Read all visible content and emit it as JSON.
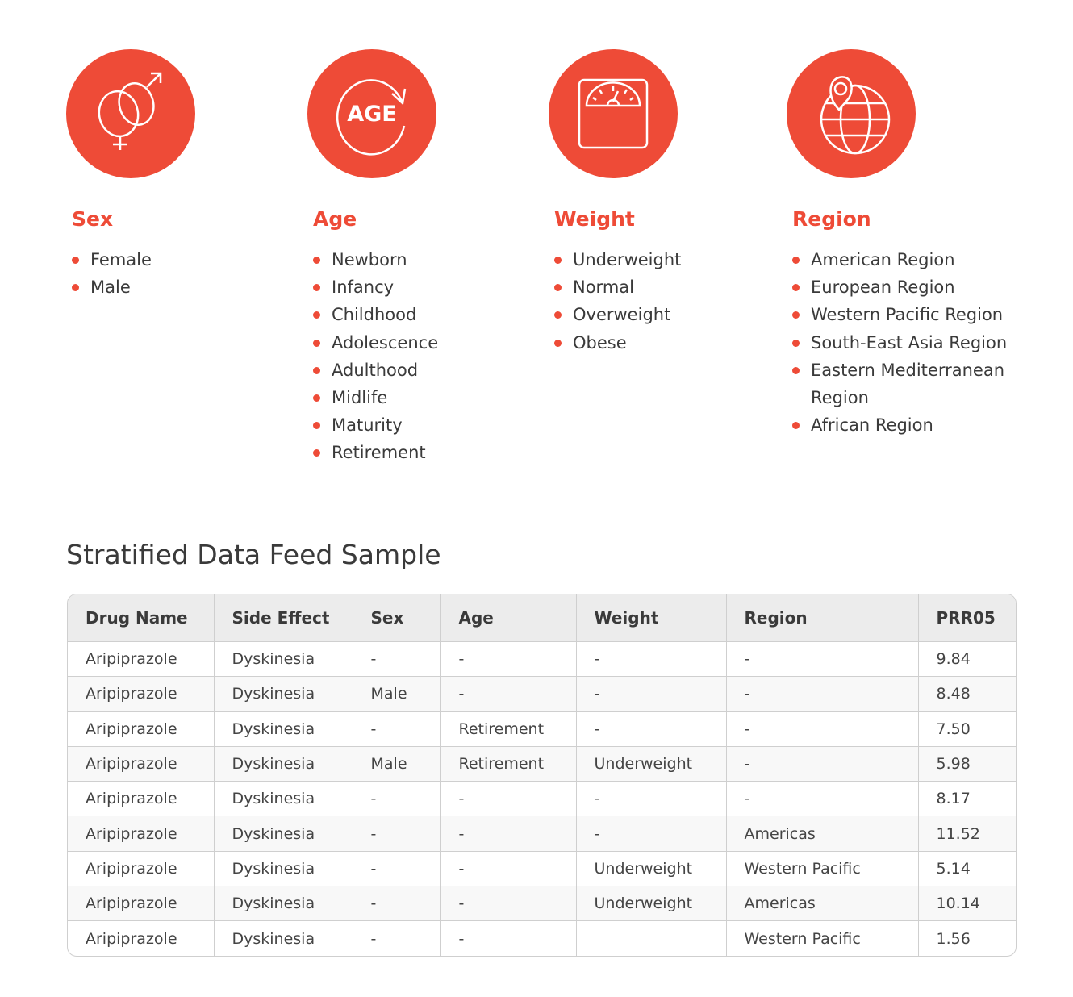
{
  "accent": "#ee4b37",
  "categories": [
    {
      "title": "Sex",
      "icon": "gender-symbols-icon",
      "items": [
        "Female",
        "Male"
      ]
    },
    {
      "title": "Age",
      "icon": "age-cycle-icon",
      "icon_text": "AGE",
      "items": [
        "Newborn",
        "Infancy",
        "Childhood",
        "Adolescence",
        "Adulthood",
        "Midlife",
        "Maturity",
        "Retirement"
      ]
    },
    {
      "title": "Weight",
      "icon": "weighing-scale-icon",
      "items": [
        "Underweight",
        "Normal",
        "Overweight",
        "Obese"
      ]
    },
    {
      "title": "Region",
      "icon": "globe-location-icon",
      "items": [
        "American Region",
        "European Region",
        "Western Pacific Region",
        "South-East Asia Region",
        "Eastern Mediterranean Region",
        "African Region"
      ]
    }
  ],
  "table": {
    "title": "Stratified Data Feed Sample",
    "columns": [
      "Drug  Name",
      "Side Effect",
      "Sex",
      "Age",
      "Weight",
      "Region",
      "PRR05"
    ],
    "rows": [
      [
        "Aripiprazole",
        "Dyskinesia",
        "-",
        "-",
        "-",
        "-",
        "9.84"
      ],
      [
        "Aripiprazole",
        "Dyskinesia",
        "Male",
        "-",
        "-",
        "-",
        "8.48"
      ],
      [
        "Aripiprazole",
        "Dyskinesia",
        "-",
        "Retirement",
        "-",
        "-",
        "7.50"
      ],
      [
        "Aripiprazole",
        "Dyskinesia",
        "Male",
        "Retirement",
        "Underweight",
        "-",
        "5.98"
      ],
      [
        "Aripiprazole",
        "Dyskinesia",
        "-",
        "-",
        "-",
        "-",
        "8.17"
      ],
      [
        "Aripiprazole",
        "Dyskinesia",
        "-",
        "-",
        "-",
        "Americas",
        "11.52"
      ],
      [
        "Aripiprazole",
        "Dyskinesia",
        "-",
        "-",
        "Underweight",
        "Western Pacific",
        "5.14"
      ],
      [
        "Aripiprazole",
        "Dyskinesia",
        "-",
        "-",
        "Underweight",
        "Americas",
        "10.14"
      ],
      [
        "Aripiprazole",
        "Dyskinesia",
        "-",
        "-",
        "",
        "Western Pacific",
        "1.56"
      ]
    ]
  }
}
